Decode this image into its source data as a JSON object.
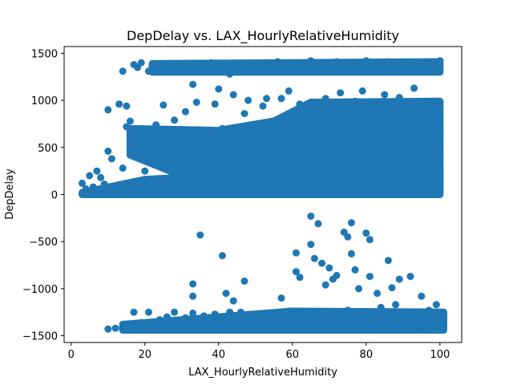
{
  "chart_data": {
    "type": "scatter",
    "title": "DepDelay vs. LAX_HourlyRelativeHumidity",
    "xlabel": "LAX_HourlyRelativeHumidity",
    "ylabel": "DepDelay",
    "xlim": [
      -1.9,
      105.9
    ],
    "ylim": [
      -1572,
      1572
    ],
    "x_ticks": [
      0,
      20,
      40,
      60,
      80,
      100
    ],
    "y_ticks": [
      -1500,
      -1000,
      -500,
      0,
      500,
      1000,
      1500
    ],
    "grid": false,
    "marker_color": "#1f77b4",
    "points": [
      [
        3,
        0
      ],
      [
        3,
        120
      ],
      [
        4,
        60
      ],
      [
        5,
        20
      ],
      [
        5,
        200
      ],
      [
        6,
        80
      ],
      [
        7,
        250
      ],
      [
        8,
        30
      ],
      [
        8,
        180
      ],
      [
        9,
        110
      ],
      [
        10,
        460
      ],
      [
        10,
        900
      ],
      [
        11,
        380
      ],
      [
        12,
        60
      ],
      [
        13,
        960
      ],
      [
        14,
        280
      ],
      [
        14,
        1310
      ],
      [
        15,
        940
      ],
      [
        15,
        720
      ],
      [
        16,
        30
      ],
      [
        16,
        780
      ],
      [
        17,
        1380
      ],
      [
        18,
        1350
      ],
      [
        19,
        1400
      ],
      [
        20,
        600
      ],
      [
        21,
        1310
      ],
      [
        22,
        150
      ],
      [
        23,
        740
      ],
      [
        24,
        1380
      ],
      [
        25,
        950
      ],
      [
        26,
        1360
      ],
      [
        27,
        540
      ],
      [
        28,
        790
      ],
      [
        29,
        320
      ],
      [
        30,
        1330
      ],
      [
        31,
        880
      ],
      [
        32,
        420
      ],
      [
        33,
        1170
      ],
      [
        34,
        980
      ],
      [
        35,
        1340
      ],
      [
        36,
        660
      ],
      [
        37,
        250
      ],
      [
        38,
        1400
      ],
      [
        39,
        960
      ],
      [
        40,
        1120
      ],
      [
        41,
        700
      ],
      [
        42,
        1330
      ],
      [
        43,
        1280
      ],
      [
        44,
        1060
      ],
      [
        45,
        480
      ],
      [
        46,
        1390
      ],
      [
        47,
        860
      ],
      [
        48,
        1000
      ],
      [
        49,
        1330
      ],
      [
        50,
        620
      ],
      [
        51,
        1380
      ],
      [
        52,
        940
      ],
      [
        53,
        1020
      ],
      [
        54,
        1360
      ],
      [
        55,
        760
      ],
      [
        56,
        1410
      ],
      [
        57,
        1020
      ],
      [
        58,
        1350
      ],
      [
        59,
        1100
      ],
      [
        60,
        880
      ],
      [
        61,
        1380
      ],
      [
        62,
        960
      ],
      [
        63,
        1340
      ],
      [
        64,
        500
      ],
      [
        65,
        1420
      ],
      [
        66,
        980
      ],
      [
        67,
        1360
      ],
      [
        68,
        760
      ],
      [
        69,
        1020
      ],
      [
        70,
        1330
      ],
      [
        71,
        660
      ],
      [
        72,
        1410
      ],
      [
        73,
        1080
      ],
      [
        74,
        1350
      ],
      [
        75,
        880
      ],
      [
        76,
        1380
      ],
      [
        77,
        990
      ],
      [
        78,
        1340
      ],
      [
        79,
        1100
      ],
      [
        80,
        1420
      ],
      [
        81,
        760
      ],
      [
        82,
        1360
      ],
      [
        83,
        930
      ],
      [
        84,
        1330
      ],
      [
        85,
        1060
      ],
      [
        86,
        1410
      ],
      [
        87,
        980
      ],
      [
        88,
        1340
      ],
      [
        89,
        1030
      ],
      [
        90,
        1380
      ],
      [
        91,
        680
      ],
      [
        92,
        1360
      ],
      [
        93,
        1130
      ],
      [
        94,
        1330
      ],
      [
        95,
        910
      ],
      [
        96,
        1390
      ],
      [
        97,
        980
      ],
      [
        98,
        1360
      ],
      [
        99,
        760
      ],
      [
        100,
        1420
      ],
      [
        100,
        1330
      ],
      [
        100,
        980
      ],
      [
        100,
        420
      ],
      [
        100,
        120
      ],
      [
        20,
        250
      ],
      [
        22,
        60
      ],
      [
        25,
        340
      ],
      [
        28,
        100
      ],
      [
        30,
        560
      ],
      [
        32,
        20
      ],
      [
        34,
        470
      ],
      [
        36,
        90
      ],
      [
        38,
        380
      ],
      [
        40,
        160
      ],
      [
        42,
        610
      ],
      [
        44,
        40
      ],
      [
        46,
        290
      ],
      [
        48,
        120
      ],
      [
        50,
        430
      ],
      [
        52,
        70
      ],
      [
        54,
        540
      ],
      [
        56,
        180
      ],
      [
        58,
        360
      ],
      [
        60,
        40
      ],
      [
        62,
        610
      ],
      [
        64,
        220
      ],
      [
        66,
        470
      ],
      [
        68,
        80
      ],
      [
        70,
        530
      ],
      [
        72,
        150
      ],
      [
        74,
        390
      ],
      [
        76,
        60
      ],
      [
        78,
        640
      ],
      [
        80,
        210
      ],
      [
        82,
        480
      ],
      [
        84,
        100
      ],
      [
        86,
        340
      ],
      [
        88,
        30
      ],
      [
        90,
        560
      ],
      [
        92,
        170
      ],
      [
        94,
        420
      ],
      [
        96,
        60
      ],
      [
        98,
        300
      ],
      [
        100,
        40
      ],
      [
        35,
        -430
      ],
      [
        41,
        -650
      ],
      [
        42,
        -1050
      ],
      [
        44,
        -1130
      ],
      [
        46,
        -1250
      ],
      [
        33,
        -950
      ],
      [
        33,
        -1080
      ],
      [
        47,
        -920
      ],
      [
        57,
        -1100
      ],
      [
        61,
        -620
      ],
      [
        61,
        -820
      ],
      [
        62,
        -880
      ],
      [
        65,
        -230
      ],
      [
        65,
        -530
      ],
      [
        66,
        -680
      ],
      [
        67,
        -310
      ],
      [
        68,
        -730
      ],
      [
        69,
        -960
      ],
      [
        70,
        -780
      ],
      [
        71,
        -900
      ],
      [
        72,
        -860
      ],
      [
        74,
        -400
      ],
      [
        75,
        -450
      ],
      [
        76,
        -300
      ],
      [
        76,
        -630
      ],
      [
        77,
        -800
      ],
      [
        78,
        -1000
      ],
      [
        80,
        -410
      ],
      [
        81,
        -480
      ],
      [
        81,
        -870
      ],
      [
        83,
        -1050
      ],
      [
        84,
        -1200
      ],
      [
        86,
        -700
      ],
      [
        87,
        -990
      ],
      [
        88,
        -1170
      ],
      [
        89,
        -900
      ],
      [
        90,
        -1280
      ],
      [
        92,
        -870
      ],
      [
        94,
        -1250
      ],
      [
        95,
        -1080
      ],
      [
        96,
        -1300
      ],
      [
        97,
        -1230
      ],
      [
        99,
        -1370
      ],
      [
        100,
        -1290
      ],
      [
        101,
        -1360
      ],
      [
        99,
        -1170
      ],
      [
        97,
        -1410
      ],
      [
        95,
        -1390
      ],
      [
        93,
        -1400
      ],
      [
        91,
        -1380
      ],
      [
        10,
        -1430
      ],
      [
        12,
        -1420
      ],
      [
        14,
        -1410
      ],
      [
        15,
        -1400
      ],
      [
        16,
        -1390
      ],
      [
        17,
        -1250
      ],
      [
        18,
        -1380
      ],
      [
        19,
        -1360
      ],
      [
        20,
        -1420
      ],
      [
        21,
        -1250
      ],
      [
        22,
        -1370
      ],
      [
        23,
        -1400
      ],
      [
        24,
        -1330
      ],
      [
        25,
        -1380
      ],
      [
        26,
        -1300
      ],
      [
        27,
        -1410
      ],
      [
        28,
        -1250
      ],
      [
        29,
        -1350
      ],
      [
        30,
        -1390
      ],
      [
        31,
        -1310
      ],
      [
        32,
        -1420
      ],
      [
        33,
        -1260
      ],
      [
        34,
        -1370
      ],
      [
        35,
        -1400
      ],
      [
        36,
        -1290
      ],
      [
        37,
        -1360
      ],
      [
        38,
        -1410
      ],
      [
        39,
        -1270
      ],
      [
        40,
        -1380
      ],
      [
        41,
        -1330
      ],
      [
        42,
        -1400
      ],
      [
        43,
        -1250
      ],
      [
        44,
        -1350
      ],
      [
        45,
        -1420
      ],
      [
        46,
        -1300
      ],
      [
        47,
        -1370
      ],
      [
        48,
        -1410
      ],
      [
        49,
        -1280
      ],
      [
        50,
        -1360
      ],
      [
        51,
        -1400
      ],
      [
        52,
        -1330
      ],
      [
        53,
        -1390
      ],
      [
        54,
        -1260
      ],
      [
        55,
        -1370
      ],
      [
        56,
        -1410
      ],
      [
        57,
        -1300
      ],
      [
        58,
        -1380
      ],
      [
        59,
        -1240
      ],
      [
        60,
        -1350
      ],
      [
        61,
        -1420
      ],
      [
        62,
        -1310
      ],
      [
        63,
        -1380
      ],
      [
        64,
        -1260
      ],
      [
        65,
        -1400
      ],
      [
        66,
        -1330
      ],
      [
        67,
        -1370
      ],
      [
        68,
        -1250
      ],
      [
        69,
        -1390
      ],
      [
        70,
        -1320
      ],
      [
        71,
        -1410
      ],
      [
        72,
        -1280
      ],
      [
        73,
        -1360
      ],
      [
        74,
        -1400
      ],
      [
        75,
        -1230
      ],
      [
        76,
        -1340
      ],
      [
        77,
        -1390
      ],
      [
        78,
        -1260
      ],
      [
        79,
        -1370
      ],
      [
        80,
        -1410
      ],
      [
        81,
        -1300
      ],
      [
        82,
        -1380
      ],
      [
        83,
        -1250
      ],
      [
        84,
        -1360
      ],
      [
        85,
        -1400
      ],
      [
        86,
        -1320
      ],
      [
        87,
        -1380
      ],
      [
        88,
        -1270
      ],
      [
        89,
        -1410
      ],
      [
        90,
        -1340
      ],
      [
        92,
        -1300
      ]
    ]
  }
}
